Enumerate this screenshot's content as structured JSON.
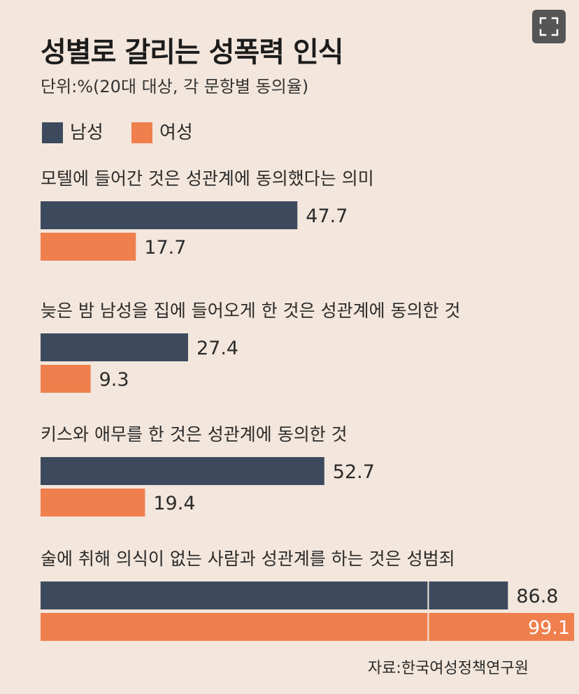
{
  "header": {
    "title": "성별로 갈리는 성폭력 인식",
    "subtitle": "단위:%(20대 대상, 각 문항별 동의율)"
  },
  "legend": {
    "items": [
      {
        "label": "남성",
        "color": "#3d4a5e"
      },
      {
        "label": "여성",
        "color": "#f07f4e"
      }
    ]
  },
  "chart_data": {
    "type": "bar",
    "orientation": "horizontal",
    "categories": [
      "모텔에 들어간 것은 성관계에 동의했다는 의미",
      "늦은 밤 남성을 집에 들어오게 한 것은 성관계에 동의한 것",
      "키스와 애무를 한 것은 성관계에 동의한 것",
      "술에 취해 의식이 없는 사람과 성관계를 하는 것은 성범죄"
    ],
    "series": [
      {
        "name": "남성",
        "values": [
          47.7,
          27.4,
          52.7,
          86.8
        ],
        "color": "#3d4a5e"
      },
      {
        "name": "여성",
        "values": [
          17.7,
          9.3,
          19.4,
          99.1
        ],
        "color": "#f07f4e"
      }
    ],
    "value_labels": [
      [
        "47.7",
        "27.4",
        "52.7",
        "86.8"
      ],
      [
        "17.7",
        "9.3",
        "19.4",
        "99.1"
      ]
    ],
    "xlim": [
      0,
      100
    ],
    "grid": false,
    "legend_position": "top-left"
  },
  "footer": {
    "source": "자료:한국여성정책연구원"
  },
  "toolbar": {
    "expand_icon": "expand-icon"
  }
}
